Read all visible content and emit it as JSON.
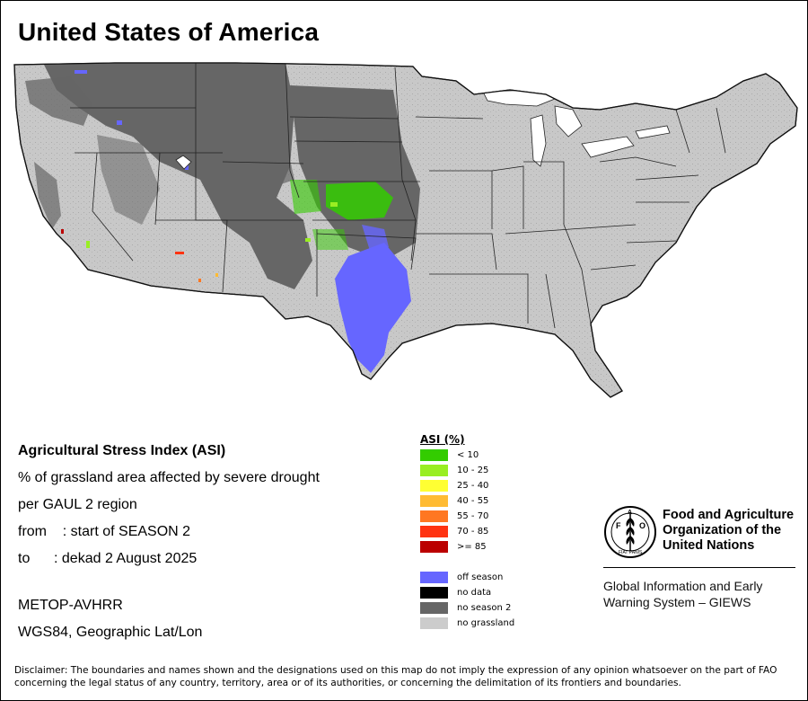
{
  "title": "United States of America",
  "info": {
    "heading": "Agricultural Stress Index (ASI)",
    "line1": "% of grassland area affected by severe drought",
    "line2": "per GAUL 2 region",
    "from": "from    : start of SEASON 2",
    "to": "to      : dekad 2 August 2025",
    "sensor": "METOP-AVHRR",
    "projection": "WGS84, Geographic Lat/Lon"
  },
  "legend": {
    "title": "ASI (%)",
    "classes": [
      {
        "label": "< 10",
        "color": "#33cc00"
      },
      {
        "label": "10 - 25",
        "color": "#99ee22"
      },
      {
        "label": "25 - 40",
        "color": "#ffff33"
      },
      {
        "label": "40 - 55",
        "color": "#ffbb33"
      },
      {
        "label": "55 - 70",
        "color": "#ff7722"
      },
      {
        "label": "70 - 85",
        "color": "#ff3311"
      },
      {
        "label": ">= 85",
        "color": "#bb0000"
      }
    ],
    "other": [
      {
        "label": "off season",
        "color": "#6666ff"
      },
      {
        "label": "no data",
        "color": "#000000"
      },
      {
        "label": "no season 2",
        "color": "#666666"
      },
      {
        "label": "no grassland",
        "color": "#cccccc"
      }
    ]
  },
  "map_colors": {
    "land": "#c8c8c8",
    "no_season_2": "#666666",
    "off_season": "#6666ff",
    "borders": "#111111",
    "water": "#ffffff"
  },
  "fao": {
    "name_line1": "Food and Agriculture",
    "name_line2": "Organization of the",
    "name_line3": "United Nations",
    "logo_text": "FAO",
    "logo_motto": "FIAT PANIS",
    "giews_line1": "Global Information and Early",
    "giews_line2": "Warning System – GIEWS"
  },
  "disclaimer": "Disclaimer: The boundaries and names shown and the designations used on this map do not imply the expression of any opinion whatsoever on the part of FAO concerning the legal status of any country, territory, area or of its authorities, or concerning the delimitation of its frontiers and boundaries."
}
